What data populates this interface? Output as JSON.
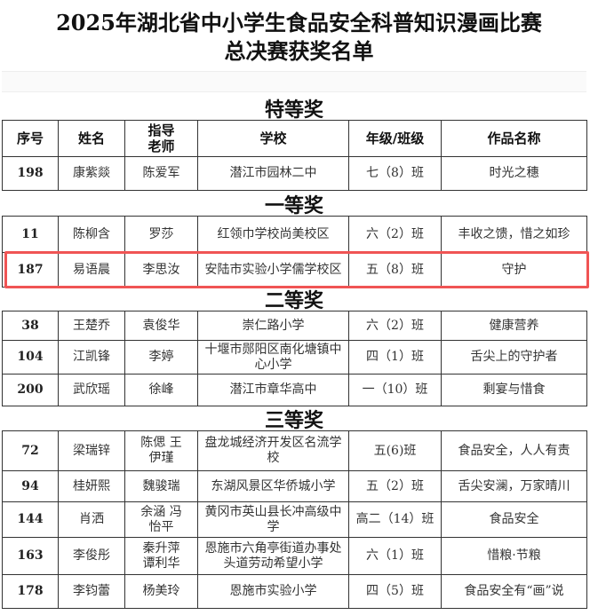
{
  "title_line1": "2025年湖北省中小学生食品安全科普知识漫画比赛",
  "title_line2": "总决赛获奖名单",
  "columns": [
    "序号",
    "姓名",
    "指导老师",
    "学校",
    "年级/班级",
    "作品名称"
  ],
  "highlight_color": "#f05454",
  "sections": [
    {
      "name": "特等奖",
      "rows": [
        [
          "198",
          "康紫燚",
          "陈爱军",
          "潜江市园林二中",
          "七（8）班",
          "时光之穗"
        ]
      ]
    },
    {
      "name": "一等奖",
      "rows": [
        [
          "11",
          "陈柳含",
          "罗莎",
          "红领巾学校尚美校区",
          "六（2）班",
          "丰收之馈，惜之如珍"
        ],
        [
          "187",
          "易语晨",
          "李思汝",
          "安陆市实验小学儒学校区",
          "五（8）班",
          "守护"
        ]
      ]
    },
    {
      "name": "二等奖",
      "rows": [
        [
          "38",
          "王楚乔",
          "袁俊华",
          "崇仁路小学",
          "六（2）班",
          "健康营养"
        ],
        [
          "104",
          "江凯锋",
          "李婷",
          "十堰市郧阳区南化塘镇中心小学",
          "四（1）班",
          "舌尖上的守护者"
        ],
        [
          "200",
          "武欣瑶",
          "徐峰",
          "潜江市章华高中",
          "一（10）班",
          "剩宴与惜食"
        ]
      ]
    },
    {
      "name": "三等奖",
      "rows": [
        [
          "72",
          "梁瑞锌",
          "陈偲 王伊瑾",
          "盘龙城经济开发区名流学校",
          "五(6)班",
          "食品安全，人人有责"
        ],
        [
          "94",
          "桂妍熙",
          "魏骏瑞",
          "东湖风景区华侨城小学",
          "五（2）班",
          "舌尖安澜，万家晴川"
        ],
        [
          "144",
          "肖洒",
          "余涵 冯怡平",
          "黄冈市英山县长冲高级中学",
          "高二（14）班",
          "食品安全"
        ],
        [
          "163",
          "李俊彤",
          "秦升萍 谭利华",
          "恩施市六角亭街道办事处头道劳动希望小学",
          "六（1）班",
          "惜粮·节粮"
        ],
        [
          "178",
          "李钧蕾",
          "杨美玲",
          "恩施市实验小学",
          "四（5）班",
          "食品安全有“画”说"
        ]
      ]
    }
  ]
}
